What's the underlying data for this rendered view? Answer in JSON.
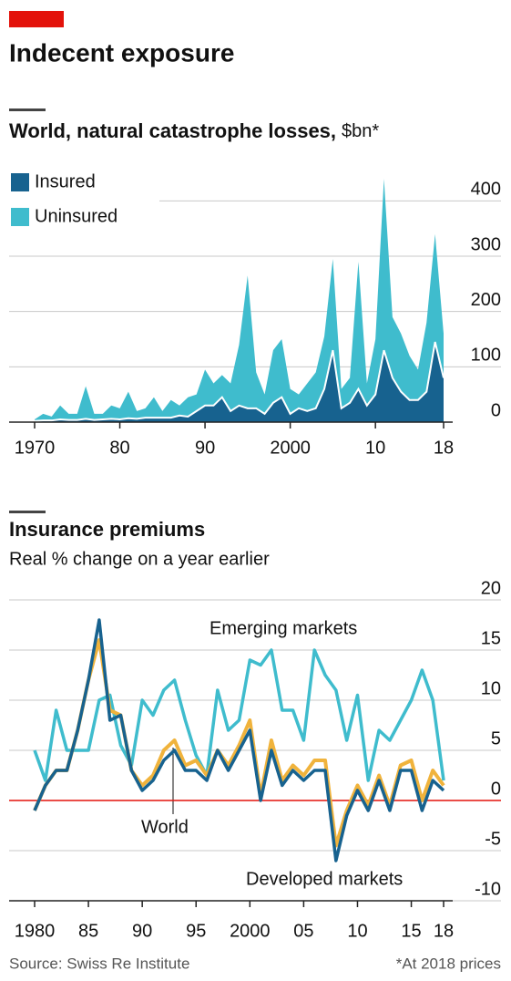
{
  "header": {
    "title": "Indecent exposure"
  },
  "chart_data": [
    {
      "type": "stacked-area",
      "title": "World, natural catastrophe losses,",
      "unit": "$bn*",
      "x": [
        1970,
        1971,
        1972,
        1973,
        1974,
        1975,
        1976,
        1977,
        1978,
        1979,
        1980,
        1981,
        1982,
        1983,
        1984,
        1985,
        1986,
        1987,
        1988,
        1989,
        1990,
        1991,
        1992,
        1993,
        1994,
        1995,
        1996,
        1997,
        1998,
        1999,
        2000,
        2001,
        2002,
        2003,
        2004,
        2005,
        2006,
        2007,
        2008,
        2009,
        2010,
        2011,
        2012,
        2013,
        2014,
        2015,
        2016,
        2017,
        2018
      ],
      "series": [
        {
          "name": "Insured",
          "color": "#17628f",
          "values": [
            2,
            3,
            3,
            5,
            4,
            4,
            6,
            4,
            5,
            6,
            5,
            7,
            6,
            8,
            8,
            8,
            8,
            12,
            10,
            20,
            30,
            30,
            45,
            20,
            30,
            25,
            25,
            15,
            35,
            45,
            15,
            25,
            20,
            25,
            60,
            130,
            25,
            35,
            60,
            30,
            50,
            130,
            80,
            55,
            40,
            40,
            55,
            145,
            80
          ]
        },
        {
          "name": "Uninsured",
          "color": "#3fbccd",
          "values": [
            3,
            12,
            7,
            25,
            11,
            11,
            59,
            11,
            10,
            24,
            20,
            48,
            14,
            17,
            37,
            12,
            32,
            18,
            35,
            30,
            65,
            40,
            40,
            50,
            110,
            240,
            65,
            35,
            95,
            105,
            45,
            25,
            50,
            65,
            95,
            165,
            35,
            45,
            230,
            40,
            100,
            310,
            110,
            105,
            80,
            55,
            125,
            195,
            80
          ]
        }
      ],
      "xlim": [
        1970,
        2018
      ],
      "xticks": [
        {
          "value": 1970,
          "label": "1970"
        },
        {
          "value": 1980,
          "label": "80"
        },
        {
          "value": 1990,
          "label": "90"
        },
        {
          "value": 2000,
          "label": "2000"
        },
        {
          "value": 2010,
          "label": "10"
        },
        {
          "value": 2018,
          "label": "18"
        }
      ],
      "ylim": [
        0,
        450
      ],
      "yticks": [
        0,
        100,
        200,
        300,
        400
      ],
      "grid": true
    },
    {
      "type": "line",
      "title": "Insurance premiums",
      "subtitle": "Real % change on a year earlier",
      "x": [
        1980,
        1981,
        1982,
        1983,
        1984,
        1985,
        1986,
        1987,
        1988,
        1989,
        1990,
        1991,
        1992,
        1993,
        1994,
        1995,
        1996,
        1997,
        1998,
        1999,
        2000,
        2001,
        2002,
        2003,
        2004,
        2005,
        2006,
        2007,
        2008,
        2009,
        2010,
        2011,
        2012,
        2013,
        2014,
        2015,
        2016,
        2017,
        2018
      ],
      "series": [
        {
          "name": "Emerging markets",
          "color": "#3fbccd",
          "values": [
            5,
            2,
            9,
            5,
            5,
            5,
            10,
            10.5,
            5.5,
            3.5,
            10,
            8.5,
            11,
            12,
            8,
            4.5,
            2.5,
            11,
            7,
            8,
            14,
            13.5,
            15,
            9,
            9,
            6,
            15,
            12.5,
            11,
            6,
            10.5,
            2,
            7,
            6,
            8,
            10,
            13,
            10,
            2
          ]
        },
        {
          "name": "World",
          "color": "#f0b33c",
          "values": [
            -1,
            1.5,
            3,
            3,
            7,
            12,
            16,
            9,
            8.5,
            3,
            1.5,
            2.5,
            5,
            6,
            3.5,
            4,
            2.5,
            5,
            3.5,
            5.5,
            8,
            0.5,
            6,
            2,
            3.5,
            2.5,
            4,
            4,
            -4.5,
            -1,
            1.5,
            -0.5,
            2.5,
            -0.5,
            3.5,
            4,
            0,
            3,
            1.5
          ]
        },
        {
          "name": "Developed markets",
          "color": "#17628f",
          "values": [
            -1,
            1.5,
            3,
            3,
            7,
            12,
            18,
            8,
            8.5,
            3,
            1,
            2,
            4,
            5,
            3,
            3,
            2,
            5,
            3,
            5,
            7,
            0,
            5,
            1.5,
            3,
            2,
            3,
            3,
            -6,
            -1.5,
            1,
            -1,
            2,
            -1,
            3,
            3,
            -1,
            2,
            1
          ]
        }
      ],
      "xlim": [
        1980,
        2018
      ],
      "xticks": [
        {
          "value": 1980,
          "label": "1980"
        },
        {
          "value": 1985,
          "label": "85"
        },
        {
          "value": 1990,
          "label": "90"
        },
        {
          "value": 1995,
          "label": "95"
        },
        {
          "value": 2000,
          "label": "2000"
        },
        {
          "value": 2005,
          "label": "05"
        },
        {
          "value": 2010,
          "label": "10"
        },
        {
          "value": 2015,
          "label": "15"
        },
        {
          "value": 2018,
          "label": "18"
        }
      ],
      "ylim": [
        -10,
        20
      ],
      "yticks": [
        -10,
        -5,
        0,
        5,
        10,
        15,
        20
      ],
      "grid": true,
      "zero_line_color": "#e3120b"
    }
  ],
  "footer": {
    "source": "Source: Swiss Re Institute",
    "note": "*At 2018 prices"
  }
}
